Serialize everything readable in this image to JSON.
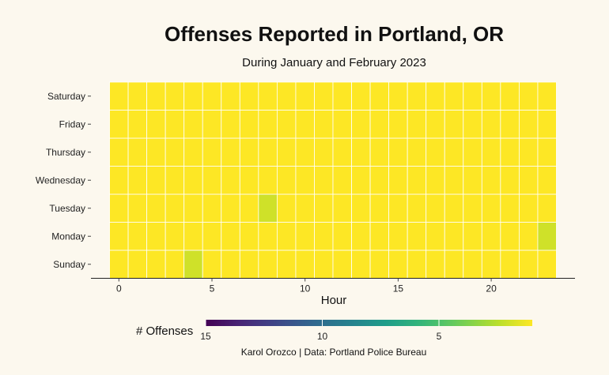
{
  "chart_data": {
    "type": "heatmap",
    "title": "Offenses Reported in Portland, OR",
    "subtitle": "During January and February 2023",
    "xlabel": "Hour",
    "ylabel": "",
    "x_ticks": [
      0,
      5,
      10,
      15,
      20
    ],
    "xlim": [
      -1.5,
      24.5
    ],
    "hours": [
      0,
      1,
      2,
      3,
      4,
      5,
      6,
      7,
      8,
      9,
      10,
      11,
      12,
      13,
      14,
      15,
      16,
      17,
      18,
      19,
      20,
      21,
      22,
      23
    ],
    "days": [
      "Sunday",
      "Monday",
      "Tuesday",
      "Wednesday",
      "Thursday",
      "Friday",
      "Saturday"
    ],
    "baseline_value": 1,
    "cells": [
      {
        "day": "Sunday",
        "hour": 4,
        "value": 2
      },
      {
        "day": "Tuesday",
        "hour": 8,
        "value": 2
      },
      {
        "day": "Monday",
        "hour": 23,
        "value": 2
      }
    ],
    "legend": {
      "title": "# Offenses",
      "ticks": [
        15,
        10,
        5
      ],
      "range": [
        15,
        1
      ],
      "colormap": "viridis"
    },
    "caption": "Karol Orozco | Data: Portland Police Bureau"
  },
  "colors": {
    "background": "#fcf8ee",
    "viridis": [
      "#440154",
      "#482878",
      "#3e4989",
      "#31688e",
      "#26828e",
      "#1f9e89",
      "#35b779",
      "#6ece58",
      "#b5de2b",
      "#fde725"
    ]
  }
}
